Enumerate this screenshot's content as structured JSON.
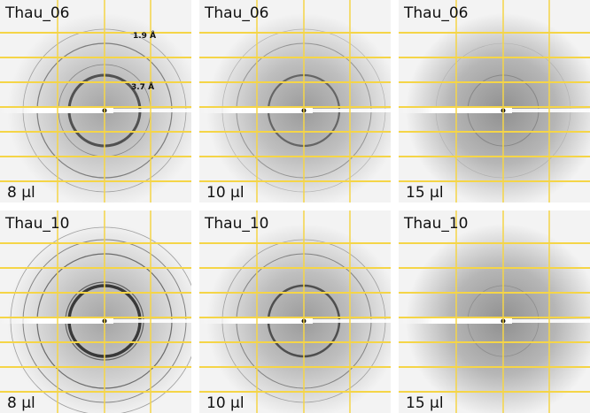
{
  "panels": [
    {
      "title": "Thau_06",
      "label": "8 µl",
      "annotations": [
        "1.9 Å",
        "3.7 Å"
      ]
    },
    {
      "title": "Thau_06",
      "label": "10 µl"
    },
    {
      "title": "Thau_06",
      "label": "15 µl"
    },
    {
      "title": "Thau_10",
      "label": "8 µl"
    },
    {
      "title": "Thau_10",
      "label": "10 µl"
    },
    {
      "title": "Thau_10",
      "label": "15 µl"
    }
  ]
}
